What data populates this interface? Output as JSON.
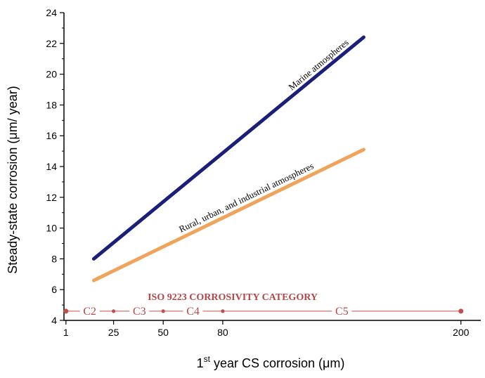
{
  "chart_data": {
    "type": "line",
    "title": "",
    "xlabel": {
      "main": "1",
      "sup": "st",
      "rest": " year CS corrosion (μm)"
    },
    "ylabel": "Steady-state corrosion (μm/ year)",
    "xlim": [
      0,
      210
    ],
    "ylim": [
      4,
      24
    ],
    "x_ticks": [
      1,
      25,
      50,
      80,
      200
    ],
    "y_ticks": [
      4,
      6,
      8,
      10,
      12,
      14,
      16,
      18,
      20,
      22,
      24
    ],
    "grid": false,
    "series": [
      {
        "name": "Marine atmospheres",
        "color": "#1b1f7a",
        "x": [
          15,
          151
        ],
        "y": [
          8.0,
          22.4
        ]
      },
      {
        "name": "Rural, urban, and industrial atmospheres",
        "color": "#f0a35a",
        "x": [
          15,
          151
        ],
        "y": [
          6.6,
          15.1
        ]
      }
    ],
    "corrosivity": {
      "title": "ISO 9223 CORROSIVITY CATEGORY",
      "y": 4.6,
      "color": "#c0504d",
      "boundaries": [
        1,
        25,
        50,
        80,
        200
      ],
      "categories": [
        {
          "label": "C2",
          "x": 13
        },
        {
          "label": "C3",
          "x": 38
        },
        {
          "label": "C4",
          "x": 65
        },
        {
          "label": "C5",
          "x": 140
        }
      ]
    }
  }
}
